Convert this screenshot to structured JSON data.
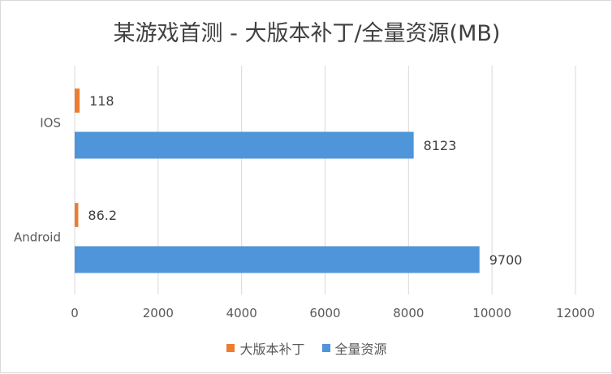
{
  "chart_data": {
    "type": "bar",
    "orientation": "horizontal",
    "title": "某游戏首测 - 大版本补丁/全量资源(MB)",
    "categories": [
      "IOS",
      "Android"
    ],
    "series": [
      {
        "name": "大版本补丁",
        "color": "#ed7d31",
        "values": [
          118,
          86.2
        ],
        "labels": [
          "118",
          "86.2"
        ]
      },
      {
        "name": "全量资源",
        "color": "#4e95d9",
        "values": [
          8123,
          9700
        ],
        "labels": [
          "8123",
          "9700"
        ]
      }
    ],
    "xlim": [
      0,
      12000
    ],
    "xticks": [
      0,
      2000,
      4000,
      6000,
      8000,
      10000,
      12000
    ],
    "xtick_labels": [
      "0",
      "2000",
      "4000",
      "6000",
      "8000",
      "10000",
      "12000"
    ],
    "grid": "vertical",
    "legend_position": "bottom"
  }
}
